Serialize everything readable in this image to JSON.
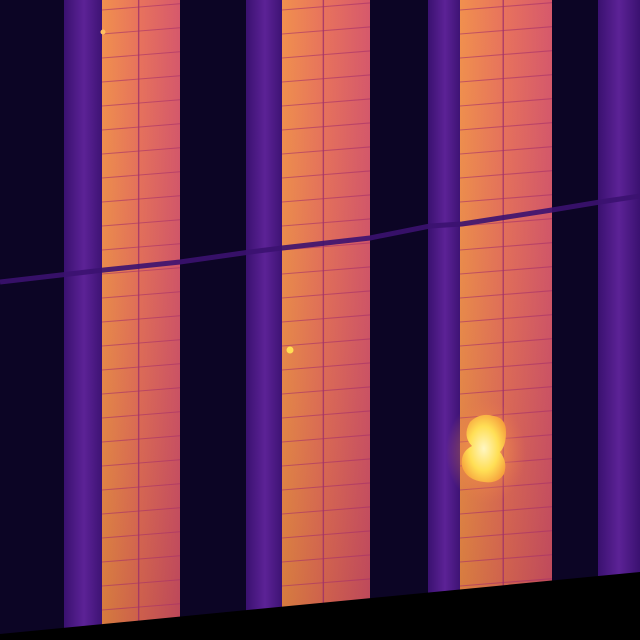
{
  "image": {
    "subject": "thermal-aerial-solar-panel-rows",
    "palette": {
      "cold": "#0b0520",
      "ground": "#2a0f55",
      "grass": "#4b1a86",
      "panel_dark": "#c2436b",
      "panel_mid": "#e0605a",
      "panel_warm": "#ef7f48",
      "hotspot": "#ffd84a",
      "hotspot_core": "#fff3b0"
    },
    "panel_rows": 3,
    "hotspots_visible": 2
  }
}
